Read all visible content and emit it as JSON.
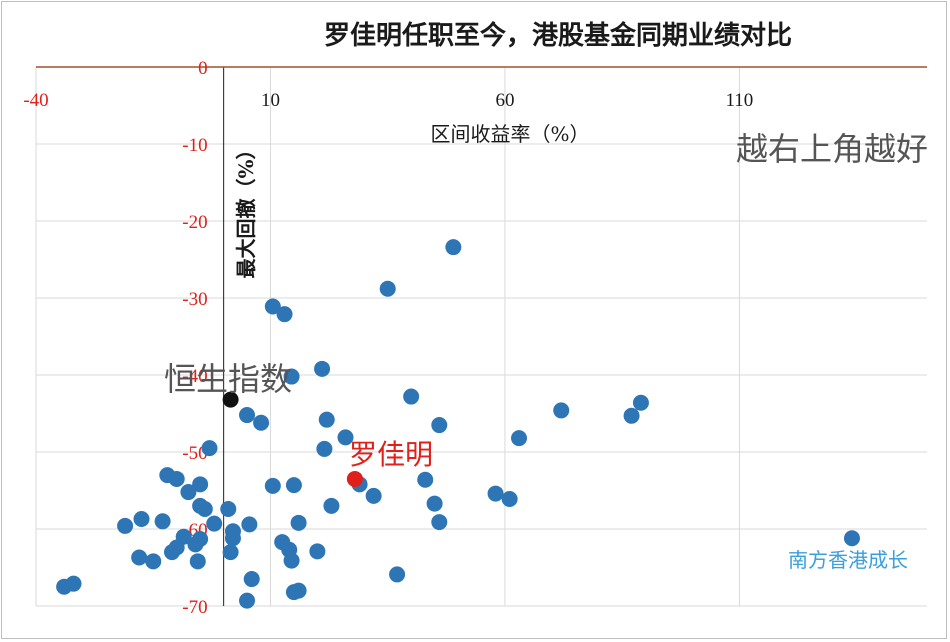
{
  "chart_data": {
    "type": "scatter",
    "title": "罗佳明任职至今，港股基金同期业绩对比",
    "xlabel": "区间收益率（%）",
    "ylabel": "最大回撤（%）",
    "xlim": [
      -40,
      150
    ],
    "ylim": [
      -70,
      0
    ],
    "x_ticks": [
      "-40",
      "10",
      "60",
      "110"
    ],
    "y_ticks": [
      "0",
      "-10",
      "-20",
      "-30",
      "-40",
      "-50",
      "-60",
      "-70"
    ],
    "grid": true,
    "colors": {
      "series": "#2e75b6",
      "highlight": "#e0201a",
      "index": "#111111",
      "zero_line": "#a0522d"
    },
    "annotations": {
      "top_right": "越右上角越好",
      "index_label": "恒生指数",
      "manager_label": "罗佳明",
      "outlier_label": "南方香港成长"
    },
    "index_point": {
      "name": "恒生指数",
      "x": 1.5,
      "y": -43.2
    },
    "highlight_point": {
      "name": "罗佳明",
      "x": 28,
      "y": -53.5
    },
    "outlier_point": {
      "name": "南方香港成长",
      "x": 134,
      "y": -61.2
    },
    "series": [
      {
        "points": [
          [
            49,
            -23.4
          ],
          [
            35,
            -28.8
          ],
          [
            10.5,
            -31.1
          ],
          [
            13,
            -32.1
          ],
          [
            21,
            -39.2
          ],
          [
            14.5,
            -40.2
          ],
          [
            40,
            -42.8
          ],
          [
            46,
            -46.5
          ],
          [
            22,
            -45.8
          ],
          [
            5,
            -45.2
          ],
          [
            8,
            -46.2
          ],
          [
            72,
            -44.6
          ],
          [
            87,
            -45.3
          ],
          [
            89,
            -43.6
          ],
          [
            26,
            -48.1
          ],
          [
            21.5,
            -49.6
          ],
          [
            63,
            -48.2
          ],
          [
            -3,
            -49.5
          ],
          [
            -12,
            -53
          ],
          [
            -10,
            -53.5
          ],
          [
            -5,
            -54.2
          ],
          [
            -7.5,
            -55.2
          ],
          [
            29,
            -54.2
          ],
          [
            43,
            -53.6
          ],
          [
            58,
            -55.4
          ],
          [
            61,
            -56.1
          ],
          [
            32,
            -55.7
          ],
          [
            10.5,
            -54.4
          ],
          [
            15,
            -54.3
          ],
          [
            -5,
            -57
          ],
          [
            -4,
            -57.4
          ],
          [
            1,
            -57.4
          ],
          [
            45,
            -56.7
          ],
          [
            23,
            -57
          ],
          [
            -2,
            -59.3
          ],
          [
            -13,
            -59
          ],
          [
            -21,
            -59.6
          ],
          [
            -17.5,
            -58.7
          ],
          [
            5.5,
            -59.4
          ],
          [
            16,
            -59.2
          ],
          [
            46,
            -59.1
          ],
          [
            2,
            -60.3
          ],
          [
            -5,
            -61.3
          ],
          [
            -8.5,
            -61
          ],
          [
            -6,
            -62
          ],
          [
            -10,
            -62.4
          ],
          [
            -11,
            -63
          ],
          [
            -15,
            -64.2
          ],
          [
            -18,
            -63.7
          ],
          [
            2,
            -61.2
          ],
          [
            12.5,
            -61.7
          ],
          [
            14,
            -62.7
          ],
          [
            14.5,
            -64.1
          ],
          [
            20,
            -62.9
          ],
          [
            1.5,
            -63
          ],
          [
            -5.5,
            -64.2
          ],
          [
            37,
            -65.9
          ],
          [
            6,
            -66.5
          ],
          [
            15,
            -68.2
          ],
          [
            16,
            -68
          ],
          [
            5,
            -69.3
          ],
          [
            -34,
            -67.5
          ],
          [
            -32,
            -67.1
          ]
        ]
      }
    ]
  }
}
